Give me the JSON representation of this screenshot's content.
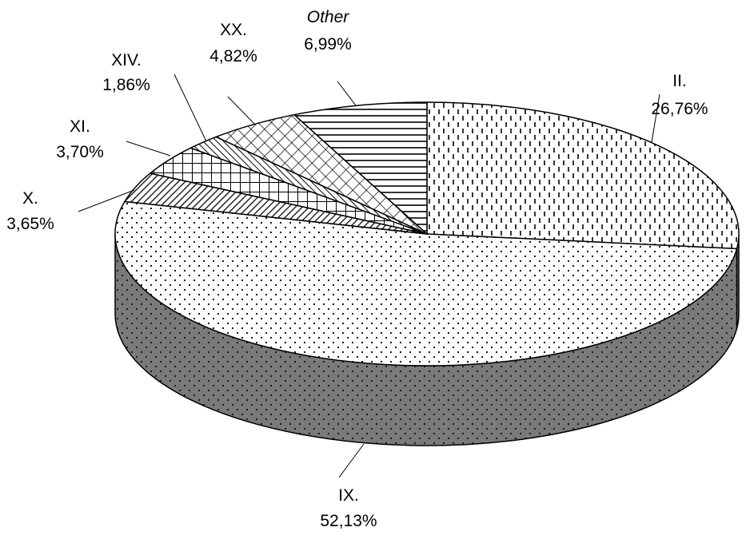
{
  "chart_data": {
    "type": "pie",
    "three_d": true,
    "legend": "none",
    "slices": [
      {
        "name": "II.",
        "value": 26.76,
        "label": "26,76%",
        "pattern": "dashes-vertical",
        "italic": false
      },
      {
        "name": "IX.",
        "value": 52.13,
        "label": "52,13%",
        "pattern": "dots",
        "italic": false
      },
      {
        "name": "X.",
        "value": 3.65,
        "label": "3,65%",
        "pattern": "diagonal-stripes",
        "italic": false
      },
      {
        "name": "XI.",
        "value": 3.7,
        "label": "3,70%",
        "pattern": "grid-large",
        "italic": false
      },
      {
        "name": "XIV.",
        "value": 1.86,
        "label": "1,86%",
        "pattern": "diagonal-back",
        "italic": false
      },
      {
        "name": "XX.",
        "value": 4.82,
        "label": "4,82%",
        "pattern": "diamond-crosshatch",
        "italic": false
      },
      {
        "name": "Other",
        "value": 6.99,
        "label": "6,99%",
        "pattern": "horizontal-stripes",
        "italic": true
      }
    ]
  }
}
